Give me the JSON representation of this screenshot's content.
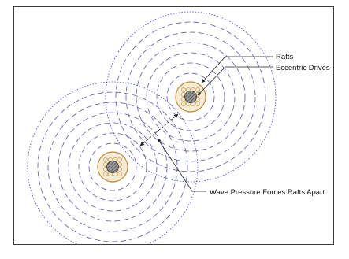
{
  "labels": {
    "rafts": "Rafts",
    "eccentric_drives": "Eccentric Drives",
    "wave_pressure": "Wave Pressure Forces Rafts Apart"
  },
  "colors": {
    "outer_ring": "#3a3ad0",
    "inner_rings": "#5a5aa8",
    "raft_outline": "#c08a30",
    "raft_fill": "#f6ecd6",
    "drive_fill": "#7a7a7a",
    "leader_line": "#222222",
    "frame_border": "#3a3a3a"
  },
  "icons": {
    "raft_symbol": "wave-energy-raft-icon",
    "drive_symbol": "eccentric-drive-icon",
    "arrow": "arrowhead-icon"
  }
}
